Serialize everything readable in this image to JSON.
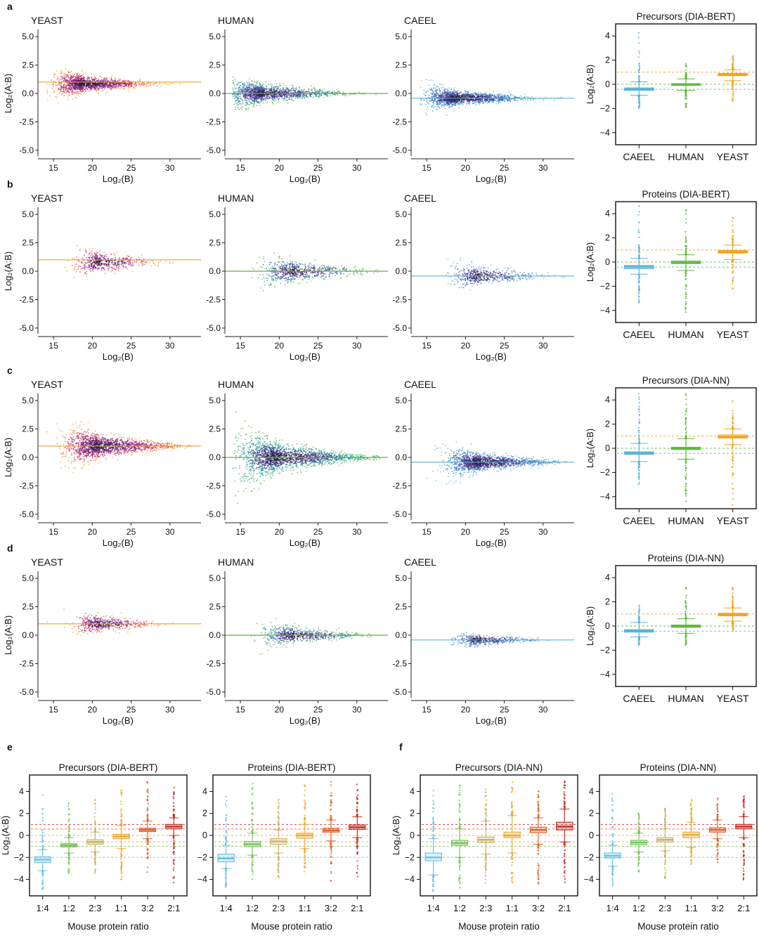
{
  "panel_letters": [
    "a",
    "b",
    "c",
    "d",
    "e",
    "f"
  ],
  "colors": {
    "caeel": "#5ab4d6",
    "human": "#5cb83a",
    "yeast": "#f2a31b",
    "mouse_1_4": "#6cc3e0",
    "mouse_1_2": "#79c35a",
    "mouse_2_3": "#c9b46a",
    "mouse_1_1": "#f0a830",
    "mouse_3_2": "#e0622a",
    "mouse_2_1": "#c0322a",
    "density_high": "#111111",
    "density_mid": "#5a2a80"
  },
  "common": {
    "ma_xlabel": "Log₂(B)",
    "ma_ylabel": "Log₂(A:B)",
    "box_ylabel": "Log₂(A:B)",
    "mouse_xlabel": "Mouse protein ratio",
    "ma_xticks": [
      "15",
      "20",
      "25",
      "30"
    ],
    "ma_yticks": [
      "5.0",
      "2.5",
      "0.0",
      "-2.5",
      "-5.0"
    ],
    "box_yticks": [
      "4",
      "2",
      "0",
      "−2",
      "−4"
    ],
    "box_categories": [
      "CAEEL",
      "HUMAN",
      "YEAST"
    ],
    "mouse_categories": [
      "1:4",
      "1:2",
      "2:3",
      "1:1",
      "3:2",
      "2:1"
    ]
  },
  "chart_data": [
    {
      "id": "a",
      "type": "scatter",
      "level": "precursors",
      "panels": [
        {
          "title": "YEAST",
          "xlim": [
            13,
            34
          ],
          "ylim": [
            -5.5,
            5.5
          ],
          "expected": 1.0,
          "line_color": "#f2a31b",
          "center_x": 19,
          "center_y": 0.85,
          "spread_x": 2.4,
          "spread_y": 0.32,
          "color_scheme": "yeast",
          "density": 1.0
        },
        {
          "title": "HUMAN",
          "xlim": [
            13,
            34
          ],
          "ylim": [
            -5.5,
            5.5
          ],
          "expected": 0.0,
          "line_color": "#5cb83a",
          "center_x": 18,
          "center_y": 0.0,
          "spread_x": 3.0,
          "spread_y": 0.35,
          "color_scheme": "human",
          "density": 1.0
        },
        {
          "title": "CAEEL",
          "xlim": [
            13,
            34
          ],
          "ylim": [
            -5.5,
            5.5
          ],
          "expected": -0.42,
          "line_color": "#5ab4d6",
          "center_x": 19,
          "center_y": -0.42,
          "spread_x": 2.6,
          "spread_y": 0.3,
          "color_scheme": "caeel",
          "density": 1.0
        }
      ],
      "boxplot": {
        "title": "Precursors (DIA-BERT)",
        "ylim": [
          -5,
          5
        ],
        "categories": [
          "CAEEL",
          "HUMAN",
          "YEAST"
        ],
        "medians": [
          -0.4,
          -0.02,
          0.8
        ],
        "q1": [
          -0.5,
          -0.08,
          0.72
        ],
        "q3": [
          -0.3,
          0.05,
          0.9
        ],
        "whisker_low": [
          -0.9,
          -0.5,
          0.3
        ],
        "whisker_high": [
          0.2,
          0.45,
          1.2
        ],
        "outlier_min": [
          -2.1,
          -1.9,
          -1.4
        ],
        "outlier_max": [
          4.5,
          1.8,
          2.4
        ],
        "reference_lines": [
          1.0,
          0.0,
          -0.42
        ]
      }
    },
    {
      "id": "b",
      "type": "scatter",
      "level": "proteins",
      "panels": [
        {
          "title": "YEAST",
          "xlim": [
            13,
            34
          ],
          "ylim": [
            -5.5,
            5.5
          ],
          "expected": 1.0,
          "line_color": "#f2a31b",
          "center_x": 21,
          "center_y": 0.8,
          "spread_x": 2.0,
          "spread_y": 0.4,
          "color_scheme": "yeast",
          "density": 0.35
        },
        {
          "title": "HUMAN",
          "xlim": [
            13,
            34
          ],
          "ylim": [
            -5.5,
            5.5
          ],
          "expected": 0.0,
          "line_color": "#5cb83a",
          "center_x": 22,
          "center_y": 0.0,
          "spread_x": 2.6,
          "spread_y": 0.4,
          "color_scheme": "human",
          "density": 0.45
        },
        {
          "title": "CAEEL",
          "xlim": [
            13,
            34
          ],
          "ylim": [
            -5.5,
            5.5
          ],
          "expected": -0.42,
          "line_color": "#5ab4d6",
          "center_x": 22,
          "center_y": -0.42,
          "spread_x": 2.4,
          "spread_y": 0.35,
          "color_scheme": "caeel",
          "density": 0.35
        }
      ],
      "boxplot": {
        "title": "Proteins (DIA-BERT)",
        "ylim": [
          -5,
          5
        ],
        "categories": [
          "CAEEL",
          "HUMAN",
          "YEAST"
        ],
        "medians": [
          -0.4,
          -0.05,
          0.85
        ],
        "q1": [
          -0.55,
          -0.12,
          0.75
        ],
        "q3": [
          -0.28,
          0.08,
          0.95
        ],
        "whisker_low": [
          -1.0,
          -0.7,
          0.2
        ],
        "whisker_high": [
          0.3,
          0.6,
          1.4
        ],
        "outlier_min": [
          -3.5,
          -4.3,
          -2.3
        ],
        "outlier_max": [
          4.8,
          4.4,
          3.9
        ],
        "reference_lines": [
          1.0,
          0.0,
          -0.42
        ]
      }
    },
    {
      "id": "c",
      "type": "scatter",
      "level": "precursors",
      "panels": [
        {
          "title": "YEAST",
          "xlim": [
            13,
            34
          ],
          "ylim": [
            -5.5,
            5.5
          ],
          "expected": 1.0,
          "line_color": "#f2a31b",
          "center_x": 21,
          "center_y": 1.0,
          "spread_x": 2.8,
          "spread_y": 0.45,
          "color_scheme": "yeast",
          "density": 1.1
        },
        {
          "title": "HUMAN",
          "xlim": [
            13,
            34
          ],
          "ylim": [
            -5.5,
            5.5
          ],
          "expected": 0.0,
          "line_color": "#5cb83a",
          "center_x": 20,
          "center_y": 0.0,
          "spread_x": 3.6,
          "spread_y": 0.55,
          "color_scheme": "human_teal",
          "density": 1.3
        },
        {
          "title": "CAEEL",
          "xlim": [
            13,
            34
          ],
          "ylim": [
            -5.5,
            5.5
          ],
          "expected": -0.42,
          "line_color": "#5ab4d6",
          "center_x": 22,
          "center_y": -0.42,
          "spread_x": 2.8,
          "spread_y": 0.35,
          "color_scheme": "caeel",
          "density": 1.0
        }
      ],
      "boxplot": {
        "title": "Precursors (DIA-NN)",
        "ylim": [
          -5,
          5
        ],
        "categories": [
          "CAEEL",
          "HUMAN",
          "YEAST"
        ],
        "medians": [
          -0.4,
          -0.02,
          0.95
        ],
        "q1": [
          -0.5,
          -0.1,
          0.85
        ],
        "q3": [
          -0.3,
          0.08,
          1.1
        ],
        "whisker_low": [
          -1.1,
          -0.9,
          0.3
        ],
        "whisker_high": [
          0.4,
          0.8,
          1.6
        ],
        "outlier_min": [
          -3.0,
          -4.7,
          -4.8
        ],
        "outlier_max": [
          5.0,
          4.7,
          3.9
        ],
        "reference_lines": [
          1.0,
          0.0,
          -0.42
        ]
      }
    },
    {
      "id": "d",
      "type": "scatter",
      "level": "proteins",
      "panels": [
        {
          "title": "YEAST",
          "xlim": [
            13,
            34
          ],
          "ylim": [
            -5.5,
            5.5
          ],
          "expected": 1.0,
          "line_color": "#f2a31b",
          "center_x": 21,
          "center_y": 1.0,
          "spread_x": 2.0,
          "spread_y": 0.3,
          "color_scheme": "yeast",
          "density": 0.35
        },
        {
          "title": "HUMAN",
          "xlim": [
            13,
            34
          ],
          "ylim": [
            -5.5,
            5.5
          ],
          "expected": 0.0,
          "line_color": "#5cb83a",
          "center_x": 22,
          "center_y": 0.0,
          "spread_x": 2.6,
          "spread_y": 0.3,
          "color_scheme": "human",
          "density": 0.45
        },
        {
          "title": "CAEEL",
          "xlim": [
            13,
            34
          ],
          "ylim": [
            -5.5,
            5.5
          ],
          "expected": -0.42,
          "line_color": "#5ab4d6",
          "center_x": 22,
          "center_y": -0.42,
          "spread_x": 2.2,
          "spread_y": 0.2,
          "color_scheme": "caeel",
          "density": 0.3
        }
      ],
      "boxplot": {
        "title": "Proteins (DIA-NN)",
        "ylim": [
          -5,
          5
        ],
        "categories": [
          "CAEEL",
          "HUMAN",
          "YEAST"
        ],
        "medians": [
          -0.4,
          -0.02,
          0.95
        ],
        "q1": [
          -0.5,
          -0.1,
          0.85
        ],
        "q3": [
          -0.3,
          0.08,
          1.05
        ],
        "whisker_low": [
          -0.9,
          -0.6,
          0.4
        ],
        "whisker_high": [
          0.3,
          0.6,
          1.5
        ],
        "outlier_min": [
          -1.6,
          -1.8,
          -0.4
        ],
        "outlier_max": [
          1.8,
          3.2,
          3.2
        ],
        "reference_lines": [
          1.0,
          0.0,
          -0.42
        ]
      }
    },
    {
      "id": "e",
      "type": "box",
      "panels": [
        {
          "title": "Precursors (DIA-BERT)",
          "ylim": [
            -5.5,
            5.5
          ],
          "categories": [
            "1:4",
            "1:2",
            "2:3",
            "1:1",
            "3:2",
            "2:1"
          ],
          "medians": [
            -2.2,
            -0.9,
            -0.6,
            -0.1,
            0.5,
            0.8
          ],
          "q1": [
            -2.45,
            -1.05,
            -0.8,
            -0.3,
            0.35,
            0.6
          ],
          "q3": [
            -1.95,
            -0.75,
            -0.4,
            0.1,
            0.65,
            1.0
          ],
          "whisker_low": [
            -3.2,
            -1.6,
            -1.5,
            -1.2,
            -0.3,
            0.0
          ],
          "whisker_high": [
            -1.3,
            -0.2,
            0.3,
            0.9,
            1.3,
            1.6
          ],
          "outlier_min": [
            -5.0,
            -3.5,
            -3.6,
            -4.2,
            -3.6,
            -4.3
          ],
          "outlier_max": [
            4.7,
            3.0,
            3.4,
            4.1,
            5.0,
            4.7
          ],
          "reference_lines": [
            1.0,
            0.585,
            0.0,
            -0.585,
            -1.0,
            -2.0
          ]
        },
        {
          "title": "Proteins (DIA-BERT)",
          "ylim": [
            -5.5,
            5.5
          ],
          "categories": [
            "1:4",
            "1:2",
            "2:3",
            "1:1",
            "3:2",
            "2:1"
          ],
          "medians": [
            -2.1,
            -0.8,
            -0.55,
            0.0,
            0.45,
            0.75
          ],
          "q1": [
            -2.4,
            -1.0,
            -0.8,
            -0.25,
            0.3,
            0.55
          ],
          "q3": [
            -1.7,
            -0.55,
            -0.3,
            0.2,
            0.65,
            0.95
          ],
          "whisker_low": [
            -3.0,
            -1.8,
            -1.6,
            -1.2,
            -0.5,
            -0.2
          ],
          "whisker_high": [
            -0.9,
            0.2,
            0.5,
            1.0,
            1.4,
            1.7
          ],
          "outlier_min": [
            -4.8,
            -4.0,
            -4.1,
            -4.3,
            -4.2,
            -3.8
          ],
          "outlier_max": [
            4.0,
            4.9,
            3.4,
            4.9,
            4.9,
            4.7
          ],
          "reference_lines": [
            1.0,
            0.585,
            0.0,
            -0.585,
            -1.0,
            -2.0
          ]
        }
      ]
    },
    {
      "id": "f",
      "type": "box",
      "panels": [
        {
          "title": "Precursors (DIA-NN)",
          "ylim": [
            -5.5,
            5.5
          ],
          "categories": [
            "1:4",
            "1:2",
            "2:3",
            "1:1",
            "3:2",
            "2:1"
          ],
          "medians": [
            -2.0,
            -0.7,
            -0.4,
            0.0,
            0.5,
            0.8
          ],
          "q1": [
            -2.3,
            -0.9,
            -0.65,
            -0.2,
            0.25,
            0.5
          ],
          "q3": [
            -1.6,
            -0.45,
            -0.15,
            0.3,
            0.75,
            1.2
          ],
          "whisker_low": [
            -3.6,
            -2.0,
            -1.7,
            -1.6,
            -0.8,
            -0.6
          ],
          "whisker_high": [
            -0.3,
            0.6,
            1.3,
            1.8,
            1.6,
            2.4
          ],
          "outlier_min": [
            -5.4,
            -5.1,
            -4.5,
            -4.7,
            -4.5,
            -4.3
          ],
          "outlier_max": [
            4.8,
            4.9,
            4.3,
            5.0,
            4.3,
            5.0
          ],
          "reference_lines": [
            1.0,
            0.585,
            0.0,
            -0.585,
            -1.0,
            -2.0
          ]
        },
        {
          "title": "Proteins (DIA-NN)",
          "ylim": [
            -5.5,
            5.5
          ],
          "categories": [
            "1:4",
            "1:2",
            "2:3",
            "1:1",
            "3:2",
            "2:1"
          ],
          "medians": [
            -1.85,
            -0.65,
            -0.4,
            0.05,
            0.5,
            0.8
          ],
          "q1": [
            -2.05,
            -0.85,
            -0.6,
            -0.2,
            0.3,
            0.6
          ],
          "q3": [
            -1.6,
            -0.45,
            -0.2,
            0.3,
            0.7,
            1.0
          ],
          "whisker_low": [
            -2.8,
            -1.5,
            -1.4,
            -1.1,
            -0.3,
            -0.2
          ],
          "whisker_high": [
            -0.9,
            0.2,
            0.6,
            1.2,
            1.4,
            1.7
          ],
          "outlier_min": [
            -4.6,
            -3.5,
            -4.0,
            -2.9,
            -2.5,
            -4.2
          ],
          "outlier_max": [
            4.0,
            2.5,
            2.6,
            3.3,
            3.6,
            3.6
          ],
          "reference_lines": [
            1.0,
            0.585,
            0.0,
            -0.585,
            -1.0,
            -2.0
          ]
        }
      ]
    }
  ]
}
